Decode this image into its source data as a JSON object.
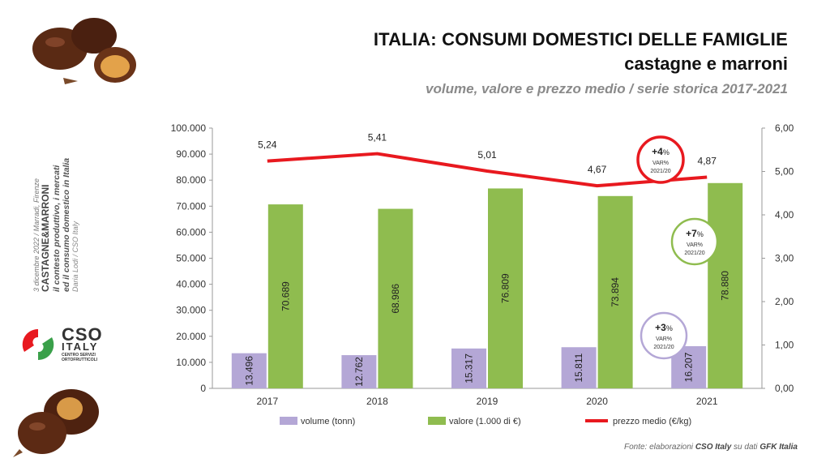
{
  "header": {
    "title": "ITALIA: CONSUMI DOMESTICI DELLE FAMIGLIE",
    "subtitle": "castagne e marroni",
    "description": "volume, valore e prezzo medio / serie storica 2017-2021"
  },
  "sidebar": {
    "line1": "3 dicembre 2022 / Marradi, Firenze",
    "line2": "CASTAGNE&MARRONI",
    "line3": "il contesto produttivo, i mercati",
    "line4": "ed il consumo domestico in Italia",
    "line5": "Daria Lodi / CSO Italy"
  },
  "logo": {
    "name": "CSO",
    "country": "ITALY",
    "tagline": "CENTRO SERVIZI ORTOFRUTTICOLI"
  },
  "source": {
    "prefix": "Fonte: elaborazioni ",
    "org": "CSO Italy",
    "middle": " su dati ",
    "data": "GFK Italia"
  },
  "colors": {
    "volume": "#b4a7d6",
    "valore": "#8fbc4f",
    "prezzo": "#e8191f",
    "axis": "#999999"
  },
  "chart_data": {
    "type": "bar",
    "categories": [
      "2017",
      "2018",
      "2019",
      "2020",
      "2021"
    ],
    "series": [
      {
        "name": "volume (tonn)",
        "type": "bar",
        "values": [
          13496,
          12762,
          15317,
          15811,
          16207
        ],
        "labels": [
          "13.496",
          "12.762",
          "15.317",
          "15.811",
          "16.207"
        ]
      },
      {
        "name": "valore (1.000 di €)",
        "type": "bar",
        "values": [
          70689,
          68986,
          76809,
          73894,
          78880
        ],
        "labels": [
          "70.689",
          "68.986",
          "76.809",
          "73.894",
          "78.880"
        ]
      },
      {
        "name": "prezzo medio (€/kg)",
        "type": "line",
        "axis": "right",
        "values": [
          5.24,
          5.41,
          5.01,
          4.67,
          4.87
        ],
        "labels": [
          "5,24",
          "5,41",
          "5,01",
          "4,67",
          "4,87"
        ]
      }
    ],
    "ylim": [
      0,
      100000
    ],
    "y_ticks": [
      "0",
      "10.000",
      "20.000",
      "30.000",
      "40.000",
      "50.000",
      "60.000",
      "70.000",
      "80.000",
      "90.000",
      "100.000"
    ],
    "y2lim": [
      0,
      6
    ],
    "y2_ticks": [
      "0,00",
      "1,00",
      "2,00",
      "3,00",
      "4,00",
      "5,00",
      "6,00"
    ],
    "grid": false,
    "legend_position": "bottom",
    "annotations": [
      {
        "value": "+4",
        "unit": "%",
        "label": "VAR%",
        "period": "2021/20",
        "series": "prezzo medio (€/kg)",
        "color": "#e8191f"
      },
      {
        "value": "+7",
        "unit": "%",
        "label": "VAR%",
        "period": "2021/20",
        "series": "valore (1.000 di €)",
        "color": "#8fbc4f"
      },
      {
        "value": "+3",
        "unit": "%",
        "label": "VAR%",
        "period": "2021/20",
        "series": "volume (tonn)",
        "color": "#b4a7d6"
      }
    ]
  }
}
